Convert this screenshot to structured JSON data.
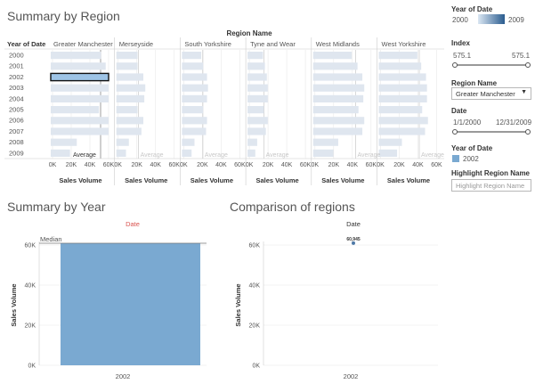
{
  "summary_region": {
    "title": "Summary by Region",
    "column_header": "Region Name",
    "row_header": "Year of Date",
    "average_label": "Average",
    "axis_label": "Sales Volume",
    "tick_labels": [
      "0K",
      "20K",
      "40K",
      "60K"
    ]
  },
  "summary_year": {
    "title": "Summary by Year",
    "legend_hint": "Date",
    "median_label": "Median"
  },
  "comparison": {
    "title": "Comparison of regions",
    "legend_hint": "Date",
    "point_label": "60,945"
  },
  "right_panel": {
    "year_legend_title": "Year of Date",
    "year_min": "2000",
    "year_max": "2009",
    "index_label": "Index",
    "index_min": "575.1",
    "index_max": "575.1",
    "index_value_min": 575.1,
    "index_value_max": 575.1,
    "region_label": "Region Name",
    "region_value": "Greater Manchester",
    "date_label": "Date",
    "date_min": "1/1/2000",
    "date_max": "12/31/2009",
    "year_filter_label": "Year of Date",
    "year_filter_value": "2002",
    "highlight_label": "Highlight Region Name",
    "highlight_placeholder": "Highlight Region Name"
  },
  "colors": {
    "bar_light": "#dfe6ef",
    "bar_selected": "#9ec4e6",
    "bar_main": "#7aa9d1",
    "dot": "#4e79a7",
    "grid": "#e8e8e8",
    "red_hint": "#d9534f"
  },
  "chart_data": [
    {
      "type": "bar",
      "title": "Summary by Region",
      "orientation": "horizontal",
      "xlabel": "Sales Volume",
      "ylabel": "Year of Date",
      "xlim": [
        0,
        60000
      ],
      "years": [
        "2000",
        "2001",
        "2002",
        "2003",
        "2004",
        "2005",
        "2006",
        "2007",
        "2008",
        "2009"
      ],
      "selected_year": "2002",
      "selected_region": "Greater Manchester",
      "series": [
        {
          "name": "Greater Manchester",
          "values": [
            52000,
            57000,
            61000,
            63000,
            61000,
            50000,
            63000,
            63000,
            27000,
            20000
          ]
        },
        {
          "name": "Merseyside",
          "values": [
            22000,
            22000,
            28000,
            30000,
            29000,
            22000,
            28000,
            26000,
            13000,
            10000
          ]
        },
        {
          "name": "South Yorkshire",
          "values": [
            20000,
            22000,
            26000,
            27000,
            26000,
            22000,
            26000,
            25000,
            13000,
            10000
          ]
        },
        {
          "name": "Tyne and Wear",
          "values": [
            16000,
            18000,
            20000,
            21000,
            21000,
            17000,
            21000,
            19000,
            10000,
            8000
          ]
        },
        {
          "name": "West Midlands",
          "values": [
            40000,
            46000,
            51000,
            53000,
            52000,
            47000,
            53000,
            51000,
            26000,
            21000
          ]
        },
        {
          "name": "West Yorkshire",
          "values": [
            40000,
            44000,
            49000,
            50000,
            50000,
            45000,
            51000,
            48000,
            24000,
            19000
          ]
        }
      ]
    },
    {
      "type": "bar",
      "title": "Summary by Year",
      "ylabel": "Sales Volume",
      "categories": [
        "2002"
      ],
      "values": [
        60945
      ],
      "ylim": [
        0,
        60000
      ],
      "yticks": [
        "0K",
        "20K",
        "40K",
        "60K"
      ],
      "reference_line": {
        "label": "Median",
        "value": 60945
      }
    },
    {
      "type": "scatter",
      "title": "Comparison of regions",
      "ylabel": "Sales Volume",
      "categories": [
        "2002"
      ],
      "values": [
        60945
      ],
      "ylim": [
        0,
        60000
      ],
      "yticks": [
        "0K",
        "20K",
        "40K",
        "60K"
      ],
      "point_label": "60,945"
    }
  ]
}
